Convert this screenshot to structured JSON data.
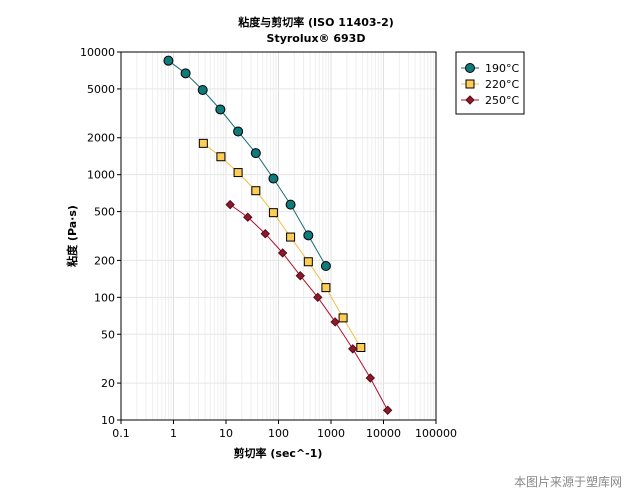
{
  "chart_data": {
    "type": "scatter",
    "title": "粘度与剪切率 (ISO 11403-2)",
    "subtitle": "Styrolux® 693D",
    "xlabel": "剪切率 (sec^-1)",
    "ylabel": "粘度 (Pa·s)",
    "xscale": "log",
    "yscale": "log",
    "xlim": [
      0.1,
      100000
    ],
    "ylim": [
      10,
      10000
    ],
    "x_ticks": [
      0.1,
      1,
      10,
      100,
      1000,
      10000,
      100000
    ],
    "x_tick_labels": [
      "0.1",
      "1",
      "10",
      "100",
      "1000",
      "10000",
      "100000"
    ],
    "y_ticks": [
      10,
      20,
      50,
      100,
      200,
      500,
      1000,
      2000,
      5000,
      10000
    ],
    "y_tick_labels": [
      "10",
      "20",
      "50",
      "100",
      "200",
      "500",
      "1000",
      "2000",
      "5000",
      "10000"
    ],
    "grid": true,
    "legend_position": "top-right, outside plot",
    "series": [
      {
        "name": "190°C",
        "marker": "circle",
        "line_color": "#1b6b7a",
        "marker_color": "#0f7a7a",
        "x": [
          0.8,
          1.7,
          3.6,
          7.8,
          17,
          37,
          80,
          170,
          370,
          800
        ],
        "y": [
          8500,
          6700,
          4900,
          3400,
          2250,
          1500,
          930,
          570,
          320,
          180
        ]
      },
      {
        "name": "220°C",
        "marker": "square",
        "line_color": "#f0c040",
        "marker_color": "#ffcc55",
        "x": [
          3.7,
          8,
          17,
          37,
          80,
          170,
          370,
          800,
          1700,
          3700
        ],
        "y": [
          1800,
          1400,
          1040,
          740,
          490,
          310,
          195,
          120,
          68,
          39
        ]
      },
      {
        "name": "250°C",
        "marker": "diamond",
        "line_color": "#b01030",
        "marker_color": "#8b1a2a",
        "x": [
          12,
          26,
          56,
          120,
          260,
          560,
          1200,
          2600,
          5600,
          12000
        ],
        "y": [
          570,
          450,
          330,
          230,
          150,
          100,
          63,
          38,
          22,
          12
        ]
      }
    ]
  },
  "watermark": "本图片来源于塑库网"
}
